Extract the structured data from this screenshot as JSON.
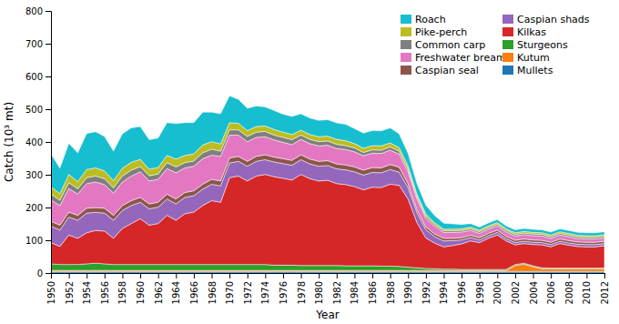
{
  "chart_data": {
    "type": "area",
    "stacked": true,
    "grid": false,
    "legend": "upper right",
    "xlabel": "Year",
    "ylabel": "Catch (10³ mt)",
    "x": [
      1950,
      1951,
      1952,
      1953,
      1954,
      1955,
      1956,
      1957,
      1958,
      1959,
      1960,
      1961,
      1962,
      1963,
      1964,
      1965,
      1966,
      1967,
      1968,
      1969,
      1970,
      1971,
      1972,
      1973,
      1974,
      1975,
      1976,
      1977,
      1978,
      1979,
      1980,
      1981,
      1982,
      1983,
      1984,
      1985,
      1986,
      1987,
      1988,
      1989,
      1990,
      1991,
      1992,
      1993,
      1994,
      1995,
      1996,
      1997,
      1998,
      1999,
      2000,
      2001,
      2002,
      2003,
      2004,
      2005,
      2006,
      2007,
      2008,
      2009,
      2010,
      2011,
      2012
    ],
    "xlim": [
      1950,
      2012
    ],
    "xticks": [
      1950,
      1952,
      1954,
      1956,
      1958,
      1960,
      1962,
      1964,
      1966,
      1968,
      1970,
      1972,
      1974,
      1976,
      1978,
      1980,
      1982,
      1984,
      1986,
      1988,
      1990,
      1992,
      1994,
      1996,
      1998,
      2000,
      2002,
      2004,
      2006,
      2008,
      2010,
      2012
    ],
    "ylim": [
      0,
      800
    ],
    "yticks": [
      0,
      100,
      200,
      300,
      400,
      500,
      600,
      700,
      800
    ],
    "series": [
      {
        "name": "Mullets",
        "values": [
          5,
          5,
          5,
          5,
          5,
          5,
          5,
          5,
          5,
          5,
          5,
          5,
          5,
          5,
          5,
          5,
          5,
          5,
          5,
          5,
          5,
          5,
          5,
          5,
          5,
          5,
          5,
          5,
          5,
          5,
          5,
          5,
          5,
          5,
          5,
          5,
          5,
          5,
          5,
          5,
          5,
          5,
          5,
          5,
          5,
          5,
          5,
          5,
          5,
          5,
          5,
          5,
          5,
          5,
          5,
          5,
          5,
          5,
          5,
          5,
          5,
          5,
          5
        ]
      },
      {
        "name": "Kutum",
        "values": [
          3,
          3,
          3,
          3,
          3,
          3,
          3,
          3,
          3,
          3,
          3,
          3,
          3,
          3,
          3,
          3,
          3,
          3,
          3,
          3,
          3,
          3,
          3,
          3,
          3,
          3,
          3,
          3,
          3,
          3,
          3,
          3,
          3,
          3,
          3,
          3,
          3,
          3,
          3,
          3,
          3,
          3,
          3,
          3,
          3,
          3,
          3,
          3,
          3,
          3,
          3,
          3,
          18,
          22,
          14,
          8,
          8,
          8,
          8,
          8,
          8,
          8,
          8
        ]
      },
      {
        "name": "Sturgeons",
        "values": [
          20,
          18,
          18,
          18,
          20,
          22,
          20,
          18,
          18,
          18,
          18,
          18,
          18,
          18,
          18,
          18,
          18,
          18,
          18,
          18,
          18,
          18,
          18,
          18,
          18,
          16,
          16,
          16,
          15,
          15,
          15,
          15,
          15,
          14,
          14,
          14,
          14,
          13,
          13,
          12,
          10,
          8,
          6,
          5,
          4,
          4,
          3,
          3,
          3,
          3,
          3,
          3,
          3,
          3,
          3,
          3,
          2,
          2,
          2,
          2,
          2,
          2,
          2
        ]
      },
      {
        "name": "Kilkas",
        "values": [
          65,
          55,
          90,
          80,
          95,
          100,
          100,
          80,
          110,
          125,
          140,
          120,
          125,
          150,
          135,
          155,
          160,
          180,
          195,
          190,
          265,
          270,
          255,
          270,
          275,
          270,
          265,
          260,
          278,
          265,
          258,
          260,
          250,
          248,
          242,
          232,
          240,
          240,
          250,
          248,
          208,
          138,
          93,
          78,
          68,
          72,
          78,
          87,
          82,
          95,
          105,
          87,
          60,
          60,
          65,
          70,
          65,
          75,
          70,
          66,
          65,
          65,
          68
        ]
      },
      {
        "name": "Caspian shads",
        "values": [
          50,
          50,
          55,
          55,
          60,
          55,
          55,
          55,
          55,
          55,
          50,
          50,
          50,
          50,
          50,
          50,
          50,
          50,
          50,
          50,
          45,
          45,
          45,
          45,
          45,
          45,
          45,
          45,
          45,
          45,
          45,
          45,
          45,
          45,
          45,
          45,
          45,
          45,
          45,
          40,
          35,
          30,
          25,
          20,
          18,
          15,
          12,
          10,
          8,
          8,
          8,
          7,
          7,
          7,
          7,
          7,
          7,
          7,
          7,
          7,
          7,
          7,
          7
        ]
      },
      {
        "name": "Caspian seal",
        "values": [
          15,
          15,
          15,
          15,
          15,
          15,
          15,
          15,
          15,
          15,
          15,
          15,
          15,
          15,
          15,
          15,
          15,
          15,
          15,
          15,
          15,
          15,
          15,
          15,
          15,
          15,
          15,
          15,
          15,
          15,
          15,
          15,
          15,
          15,
          15,
          15,
          15,
          15,
          15,
          15,
          12,
          10,
          8,
          8,
          8,
          7,
          7,
          7,
          7,
          7,
          7,
          7,
          7,
          7,
          7,
          7,
          7,
          7,
          7,
          7,
          7,
          7,
          7
        ]
      },
      {
        "name": "Freshwater bream",
        "values": [
          65,
          60,
          72,
          65,
          75,
          78,
          72,
          68,
          72,
          75,
          78,
          70,
          70,
          78,
          80,
          75,
          75,
          78,
          74,
          75,
          70,
          65,
          60,
          58,
          55,
          52,
          50,
          48,
          47,
          47,
          47,
          47,
          47,
          47,
          46,
          44,
          44,
          44,
          44,
          40,
          36,
          32,
          27,
          23,
          18,
          18,
          17,
          15,
          13,
          13,
          13,
          13,
          13,
          13,
          13,
          13,
          12,
          12,
          12,
          10,
          10,
          10,
          10
        ]
      },
      {
        "name": "Common carp",
        "values": [
          18,
          16,
          18,
          16,
          18,
          18,
          18,
          16,
          18,
          18,
          16,
          16,
          16,
          18,
          18,
          16,
          16,
          18,
          18,
          16,
          16,
          16,
          16,
          16,
          16,
          15,
          15,
          15,
          13,
          13,
          13,
          13,
          13,
          12,
          12,
          10,
          10,
          10,
          10,
          9,
          8,
          7,
          6,
          5,
          5,
          5,
          5,
          5,
          5,
          5,
          5,
          5,
          5,
          5,
          5,
          5,
          5,
          5,
          5,
          5,
          5,
          5,
          5
        ]
      },
      {
        "name": "Pike-perch",
        "values": [
          22,
          20,
          25,
          22,
          25,
          25,
          24,
          22,
          24,
          24,
          22,
          20,
          20,
          22,
          24,
          22,
          22,
          24,
          23,
          22,
          22,
          20,
          18,
          17,
          17,
          17,
          16,
          16,
          15,
          15,
          15,
          15,
          15,
          15,
          13,
          13,
          13,
          13,
          12,
          11,
          10,
          8,
          7,
          6,
          5,
          5,
          5,
          5,
          5,
          5,
          5,
          5,
          5,
          5,
          5,
          5,
          5,
          5,
          5,
          5,
          5,
          5,
          5
        ]
      },
      {
        "name": "Roach",
        "values": [
          100,
          78,
          95,
          88,
          110,
          110,
          105,
          90,
          105,
          105,
          100,
          90,
          90,
          100,
          108,
          100,
          95,
          100,
          90,
          92,
          82,
          73,
          68,
          63,
          58,
          58,
          55,
          55,
          50,
          50,
          50,
          50,
          50,
          50,
          46,
          46,
          46,
          46,
          46,
          42,
          38,
          32,
          27,
          22,
          18,
          16,
          13,
          11,
          9,
          9,
          9,
          9,
          9,
          9,
          9,
          9,
          9,
          9,
          9,
          9,
          9,
          9,
          9
        ]
      }
    ]
  }
}
